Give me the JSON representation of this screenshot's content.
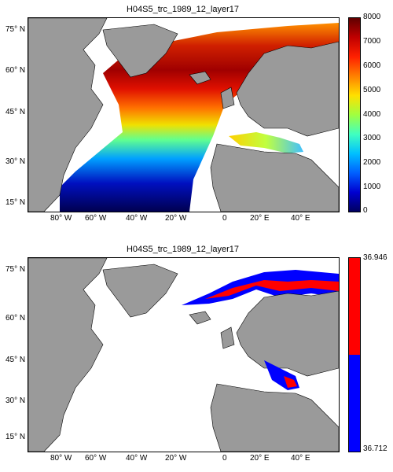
{
  "colors": {
    "land": "#9a9a9a",
    "ocean_bg": "#ffffff",
    "frame": "#000000"
  },
  "panels": [
    {
      "title": "H04S5_trc_1989_12_layer17",
      "lat_ticks": [
        "75° N",
        "60° N",
        "45° N",
        "30° N",
        "15° N"
      ],
      "lon_ticks": [
        "80° W",
        "60° W",
        "40° W",
        "20° W",
        "0",
        "20° E",
        "40° E"
      ],
      "colorbar": {
        "type": "continuous",
        "ticks": [
          "8000",
          "7000",
          "6000",
          "5000",
          "4000",
          "3000",
          "2000",
          "1000",
          "0"
        ],
        "colors": [
          "#000060",
          "#0000d0",
          "#0060ff",
          "#00c0ff",
          "#40ffc0",
          "#a0ff40",
          "#ffe000",
          "#ff8000",
          "#ff2000",
          "#c00000",
          "#600000"
        ]
      }
    },
    {
      "title": "H04S5_trc_1989_12_layer17",
      "lat_ticks": [
        "75° N",
        "60° N",
        "45° N",
        "30° N",
        "15° N"
      ],
      "lon_ticks": [
        "80° W",
        "60° W",
        "40° W",
        "20° W",
        "0",
        "20° E",
        "40° E"
      ],
      "colorbar": {
        "type": "binary",
        "ticks": [
          "36.946",
          "36.712"
        ],
        "colors": [
          "#ff0000",
          "#0000ff"
        ]
      }
    }
  ]
}
